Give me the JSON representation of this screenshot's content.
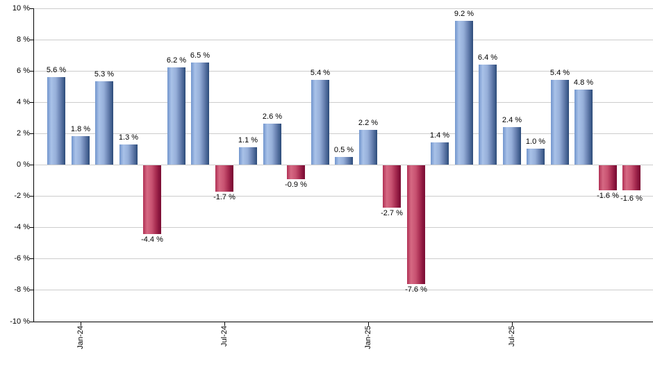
{
  "chart_data": {
    "type": "bar",
    "title": "",
    "xlabel": "",
    "ylabel": "",
    "ylim": [
      -10,
      10
    ],
    "y_tick_step": 2,
    "grid": true,
    "legend": "none",
    "y_ticks": [
      {
        "value": 10,
        "label": "10 %"
      },
      {
        "value": 8,
        "label": "8 %"
      },
      {
        "value": 6,
        "label": "6 %"
      },
      {
        "value": 4,
        "label": "4 %"
      },
      {
        "value": 2,
        "label": "2 %"
      },
      {
        "value": 0,
        "label": "0 %"
      },
      {
        "value": -2,
        "label": "-2 %"
      },
      {
        "value": -4,
        "label": "-4 %"
      },
      {
        "value": -6,
        "label": "-6 %"
      },
      {
        "value": -8,
        "label": "-8 %"
      },
      {
        "value": -10,
        "label": "-10 %"
      }
    ],
    "x_ticks": [
      {
        "bar_index": 1,
        "label": "Jan-24"
      },
      {
        "bar_index": 7,
        "label": "Jul-24"
      },
      {
        "bar_index": 13,
        "label": "Jan-25"
      },
      {
        "bar_index": 19,
        "label": "Jul-25"
      }
    ],
    "values": [
      5.6,
      1.8,
      5.3,
      1.3,
      -4.4,
      6.2,
      6.5,
      -1.7,
      1.1,
      2.6,
      -0.9,
      5.4,
      0.5,
      2.2,
      -2.7,
      -7.6,
      1.4,
      9.2,
      6.4,
      2.4,
      1.0,
      5.4,
      4.8,
      -1.6,
      -1.6
    ],
    "bar_labels": [
      "5.6 %",
      "1.8 %",
      "5.3 %",
      "1.3 %",
      "-4.4 %",
      "6.2 %",
      "6.5 %",
      "-1.7 %",
      "1.1 %",
      "2.6 %",
      "-0.9 %",
      "5.4 %",
      "0.5 %",
      "2.2 %",
      "-2.7 %",
      "-7.6 %",
      "1.4 %",
      "9.2 %",
      "6.4 %",
      "2.4 %",
      "1.0 %",
      "5.4 %",
      "4.8 %",
      "-1.6 %",
      "-1.6 %"
    ],
    "colors": {
      "positive_gradient": [
        "#7195cd",
        "#a9c2e8",
        "#96afd9",
        "#6881b1",
        "#42608f",
        "#2b4a78"
      ],
      "negative_gradient": [
        "#b13055",
        "#d56983",
        "#c85271",
        "#a62b50",
        "#85123a",
        "#7c0f35"
      ],
      "gridline": "#cccccc",
      "axis": "#000000",
      "label_text": "#000000",
      "background": "#ffffff"
    }
  }
}
